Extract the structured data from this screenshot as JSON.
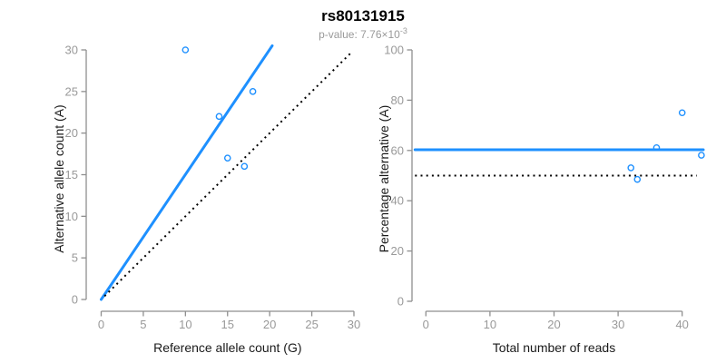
{
  "figure": {
    "title": "rs80131915",
    "subtitle_prefix": "p-value: 7.76×10",
    "subtitle_exponent": "-3"
  },
  "colors": {
    "accent_blue": "#1E90FF",
    "axis_gray": "#8f8f8f",
    "tick_label_gray": "#999999",
    "subtitle_gray": "#999999",
    "line_black": "#000000"
  },
  "chart_data": [
    {
      "type": "scatter",
      "title": "rs80131915",
      "xlabel": "Reference allele count (G)",
      "ylabel": "Alternative allele count (A)",
      "xlim": [
        0,
        30
      ],
      "ylim": [
        0,
        30
      ],
      "xticks": [
        0,
        5,
        10,
        15,
        20,
        25,
        30
      ],
      "yticks": [
        0,
        5,
        10,
        15,
        20,
        25,
        30
      ],
      "grid": false,
      "legend": null,
      "points": [
        [
          10,
          30
        ],
        [
          14,
          22
        ],
        [
          15,
          17
        ],
        [
          17,
          16
        ],
        [
          18,
          25
        ]
      ],
      "lines": [
        {
          "name": "fit-line",
          "style": "solid",
          "color": "#1E90FF",
          "width": 3,
          "x": [
            0,
            20.3
          ],
          "y": [
            0,
            30.5
          ]
        },
        {
          "name": "identity-line",
          "style": "dotted",
          "color": "#000000",
          "width": 2,
          "x": [
            0.4,
            29.6
          ],
          "y": [
            0.4,
            29.6
          ]
        }
      ]
    },
    {
      "type": "scatter",
      "title": "rs80131915",
      "xlabel": "Total number of reads",
      "ylabel": "Percentage alternative (A)",
      "xlim": [
        0,
        40
      ],
      "ylim": [
        0,
        100
      ],
      "xticks": [
        0,
        10,
        20,
        30,
        40
      ],
      "yticks": [
        0,
        20,
        40,
        60,
        80,
        100
      ],
      "grid": false,
      "legend": null,
      "points": [
        [
          32,
          53.1
        ],
        [
          33,
          48.5
        ],
        [
          36,
          61.1
        ],
        [
          40,
          75
        ],
        [
          43,
          58.1
        ]
      ],
      "lines": [
        {
          "name": "mean-percentage-line",
          "style": "solid",
          "color": "#1E90FF",
          "width": 3,
          "x": [
            -1.7,
            43.3
          ],
          "y": [
            60.3,
            60.3
          ]
        },
        {
          "name": "expected-50-line",
          "style": "dotted",
          "color": "#000000",
          "width": 2,
          "x": [
            -1.7,
            42.3
          ],
          "y": [
            50,
            50
          ]
        }
      ]
    }
  ]
}
